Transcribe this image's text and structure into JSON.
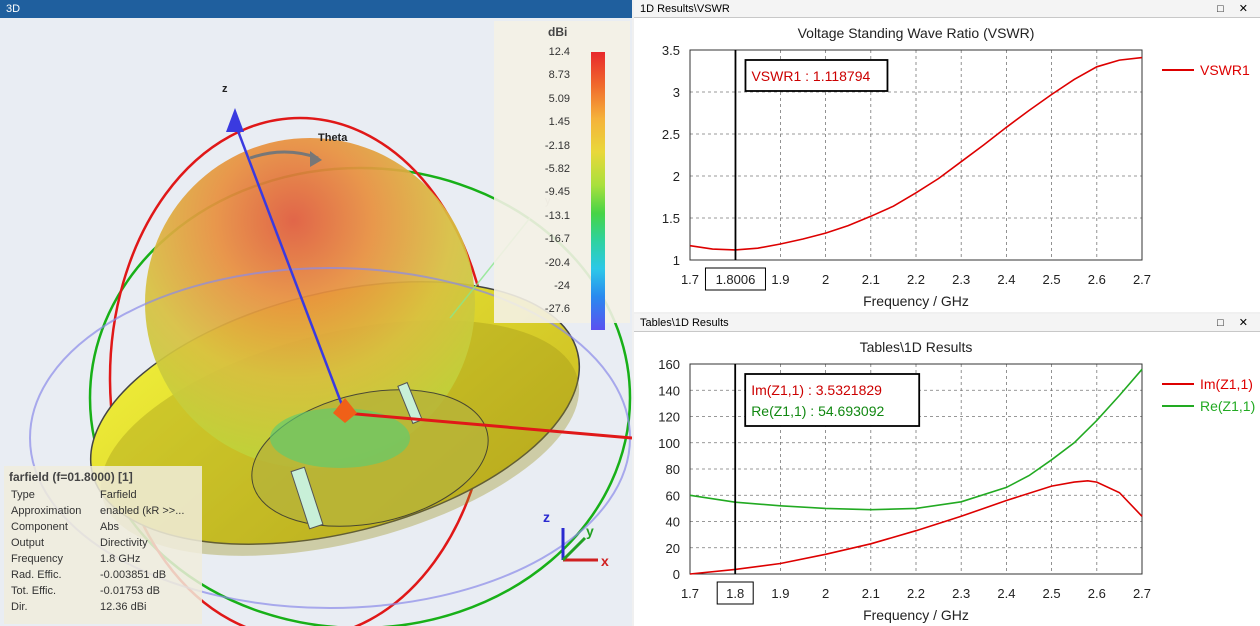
{
  "left_pane": {
    "tab_label": "3D",
    "farfield": {
      "title": "farfield (f=01.8000) [1]",
      "rows": [
        {
          "key": "Type",
          "value": "Farfield"
        },
        {
          "key": "Approximation",
          "value": "enabled (kR >>..."
        },
        {
          "key": "Component",
          "value": "Abs"
        },
        {
          "key": "Output",
          "value": "Directivity"
        },
        {
          "key": "Frequency",
          "value": "1.8 GHz"
        },
        {
          "key": "Rad. Effic.",
          "value": "-0.003851 dB"
        },
        {
          "key": "Tot. Effic.",
          "value": "-0.01753 dB"
        },
        {
          "key": "Dir.",
          "value": "12.36 dBi"
        }
      ]
    },
    "colorbar": {
      "unit": "dBi",
      "ticks": [
        "12.4",
        "8.73",
        "5.09",
        "1.45",
        "-2.18",
        "-5.82",
        "-9.45",
        "-13.1",
        "-16.7",
        "-20.4",
        "-24",
        "-27.6"
      ]
    },
    "axes": {
      "z": "z",
      "theta": "Theta",
      "y": "y",
      "tri_x": "x",
      "tri_y": "y",
      "tri_z": "z"
    }
  },
  "vswr_pane": {
    "title": "1D Results\\VSWR",
    "window_buttons": "□ ✕",
    "chart_data": {
      "type": "line",
      "title": "Voltage Standing Wave Ratio (VSWR)",
      "xlabel": "Frequency / GHz",
      "ylabel": "",
      "xlim": [
        1.7,
        2.7
      ],
      "ylim": [
        1,
        3.5
      ],
      "xticks": [
        "1.7",
        "1.9",
        "2",
        "2.1",
        "2.2",
        "2.3",
        "2.4",
        "2.5",
        "2.6",
        "2.7"
      ],
      "yticks": [
        "1",
        "1.5",
        "2",
        "2.5",
        "3",
        "3.5"
      ],
      "grid": true,
      "legend": "right",
      "marker_x": 1.8006,
      "marker_label": "1.8006",
      "annotation": [
        {
          "text": "VSWR1 : 1.118794",
          "color": "#cc0000"
        }
      ],
      "series": [
        {
          "name": "VSWR1",
          "color": "#dd0000",
          "x": [
            1.7,
            1.75,
            1.8,
            1.85,
            1.9,
            1.95,
            2.0,
            2.05,
            2.1,
            2.15,
            2.2,
            2.25,
            2.3,
            2.35,
            2.4,
            2.45,
            2.5,
            2.55,
            2.6,
            2.65,
            2.7
          ],
          "values": [
            1.17,
            1.13,
            1.12,
            1.14,
            1.19,
            1.25,
            1.32,
            1.41,
            1.52,
            1.64,
            1.8,
            1.97,
            2.17,
            2.37,
            2.58,
            2.78,
            2.97,
            3.15,
            3.3,
            3.38,
            3.41
          ]
        }
      ]
    }
  },
  "table_pane": {
    "title": "Tables\\1D Results",
    "window_buttons": "□ ✕",
    "chart_data": {
      "type": "line",
      "title": "Tables\\1D Results",
      "xlabel": "Frequency / GHz",
      "ylabel": "",
      "xlim": [
        1.7,
        2.7
      ],
      "ylim": [
        0,
        160
      ],
      "xticks": [
        "1.7",
        "1.9",
        "2",
        "2.1",
        "2.2",
        "2.3",
        "2.4",
        "2.5",
        "2.6",
        "2.7"
      ],
      "yticks": [
        "0",
        "20",
        "40",
        "60",
        "80",
        "100",
        "120",
        "140",
        "160"
      ],
      "grid": true,
      "legend": "right",
      "marker_x": 1.8,
      "marker_label": "1.8",
      "annotation": [
        {
          "text": "Im(Z1,1) : 3.5321829",
          "color": "#cc0000"
        },
        {
          "text": "Re(Z1,1) : 54.693092",
          "color": "#118811"
        }
      ],
      "series": [
        {
          "name": "Im(Z1,1)",
          "color": "#dd0000",
          "x": [
            1.7,
            1.8,
            1.9,
            2.0,
            2.1,
            2.2,
            2.3,
            2.4,
            2.5,
            2.55,
            2.58,
            2.6,
            2.65,
            2.7
          ],
          "values": [
            0,
            3.5,
            8,
            15,
            23,
            33,
            44,
            56,
            67,
            70,
            71,
            70,
            62,
            44
          ]
        },
        {
          "name": "Re(Z1,1)",
          "color": "#22aa22",
          "x": [
            1.7,
            1.8,
            1.9,
            2.0,
            2.1,
            2.2,
            2.3,
            2.4,
            2.45,
            2.5,
            2.55,
            2.6,
            2.65,
            2.7
          ],
          "values": [
            60,
            54.7,
            52,
            50,
            49,
            50,
            55,
            66,
            75,
            87,
            100,
            117,
            136,
            156
          ]
        }
      ]
    }
  }
}
